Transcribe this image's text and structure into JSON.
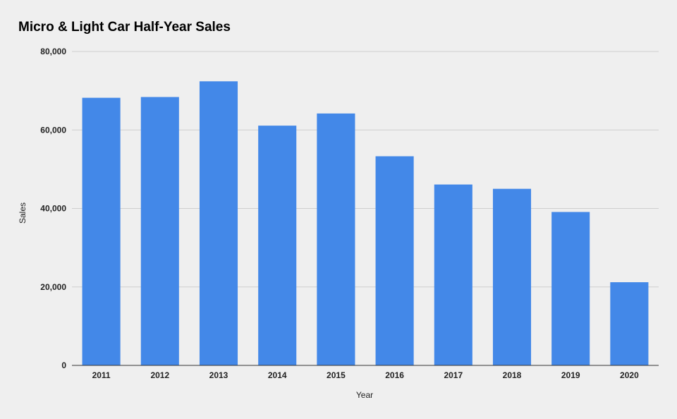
{
  "chart_data": {
    "type": "bar",
    "title": "Micro & Light Car Half-Year Sales",
    "xlabel": "Year",
    "ylabel": "Sales",
    "categories": [
      "2011",
      "2012",
      "2013",
      "2014",
      "2015",
      "2016",
      "2017",
      "2018",
      "2019",
      "2020"
    ],
    "values": [
      68200,
      68400,
      72400,
      61100,
      64200,
      53300,
      46100,
      45000,
      39100,
      21200
    ],
    "ylim": [
      0,
      80000
    ],
    "yticks": [
      0,
      20000,
      40000,
      60000,
      80000
    ],
    "ytick_labels": [
      "0",
      "20,000",
      "40,000",
      "60,000",
      "80,000"
    ],
    "grid": true,
    "legend": "none",
    "bar_color": "#4388e8"
  }
}
